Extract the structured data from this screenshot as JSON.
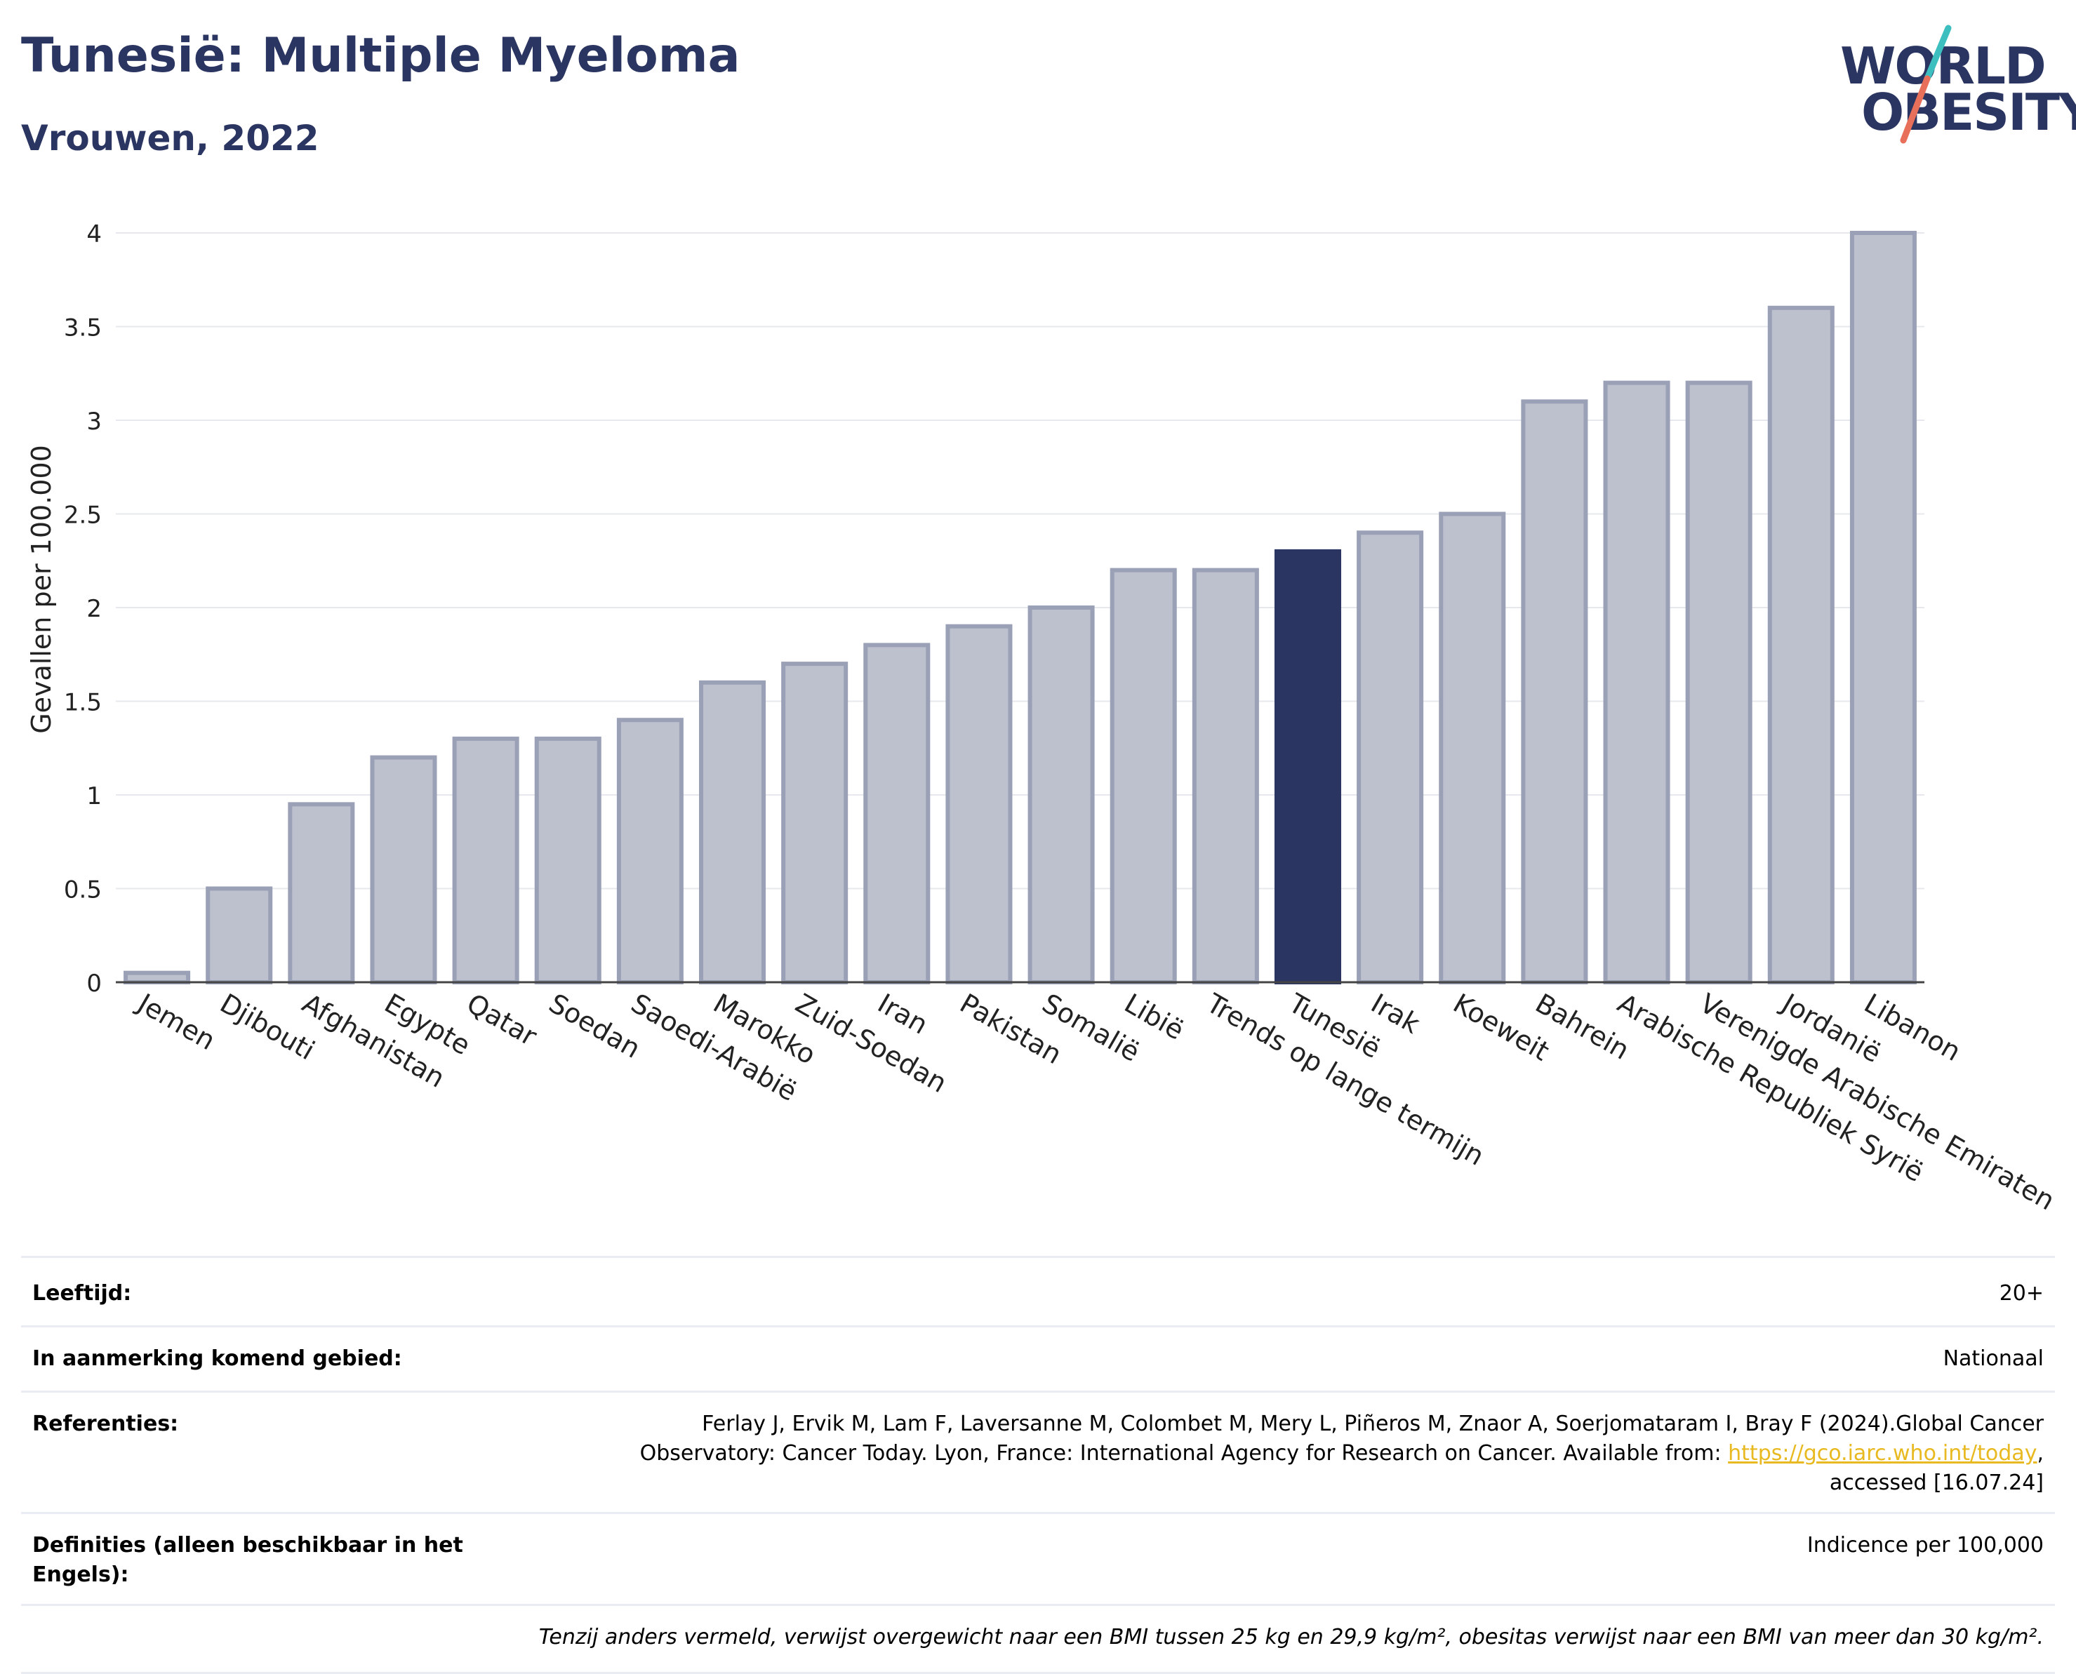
{
  "header": {
    "title": "Tunesië: Multiple Myeloma",
    "subtitle": "Vrouwen, 2022"
  },
  "logo": {
    "line1": "WORLD",
    "line2": "OBESITY"
  },
  "colors": {
    "accent": "#2b3561",
    "bar_fill": "#bdc0cd",
    "bar_stroke": "#9aa0b6",
    "logo_stripe_teal": "#3dbfbf",
    "logo_stripe_coral": "#e8705a"
  },
  "chart_data": {
    "type": "bar",
    "title": "Tunesië: Multiple Myeloma",
    "subtitle": "Vrouwen, 2022",
    "ylabel": "Gevallen per 100.000",
    "xlabel": "",
    "ylim": [
      0,
      4
    ],
    "yticks": [
      0,
      0.5,
      1,
      1.5,
      2,
      2.5,
      3,
      3.5,
      4
    ],
    "ytick_labels": [
      "0",
      "0.5",
      "1",
      "1.5",
      "2",
      "2.5",
      "3",
      "3.5",
      "4"
    ],
    "grid": true,
    "highlight": "Tunesië",
    "categories": [
      "Jemen",
      "Djibouti",
      "Afghanistan",
      "Egypte",
      "Qatar",
      "Soedan",
      "Saoedi-Arabië",
      "Marokko",
      "Zuid-Soedan",
      "Iran",
      "Pakistan",
      "Somalië",
      "Libië",
      "Trends op lange termijn",
      "Tunesië",
      "Irak",
      "Koeweit",
      "Bahrein",
      "Arabische Republiek Syrië",
      "Verenigde Arabische Emiraten",
      "Jordanië",
      "Libanon"
    ],
    "values": [
      0.05,
      0.5,
      0.95,
      1.2,
      1.3,
      1.3,
      1.4,
      1.6,
      1.7,
      1.8,
      1.9,
      2.0,
      2.2,
      2.2,
      2.3,
      2.4,
      2.5,
      3.1,
      3.2,
      3.2,
      3.6,
      4.0
    ]
  },
  "info": {
    "age_label": "Leeftijd:",
    "age_value": "20+",
    "area_label": "In aanmerking komend gebied:",
    "area_value": "Nationaal",
    "refs_label": "Referenties:",
    "refs_line1": "Ferlay J, Ervik M, Lam F, Laversanne M, Colombet M, Mery L, Piñeros M, Znaor A, Soerjomataram I, Bray F (2024).Global Cancer",
    "refs_line2_pre": "Observatory: Cancer Today. Lyon, France: International Agency for Research on Cancer. Available from: ",
    "refs_link": "https://gco.iarc.who.int/today",
    "refs_line2_post": ",",
    "refs_line3": "accessed [16.07.24]",
    "def_label": "Definities (alleen beschikbaar in het Engels):",
    "def_value": "Indicence per 100,000",
    "note": "Tenzij anders vermeld, verwijst overgewicht naar een BMI tussen 25 kg en 29,9 kg/m², obesitas verwijst naar een BMI van meer dan 30 kg/m²."
  }
}
